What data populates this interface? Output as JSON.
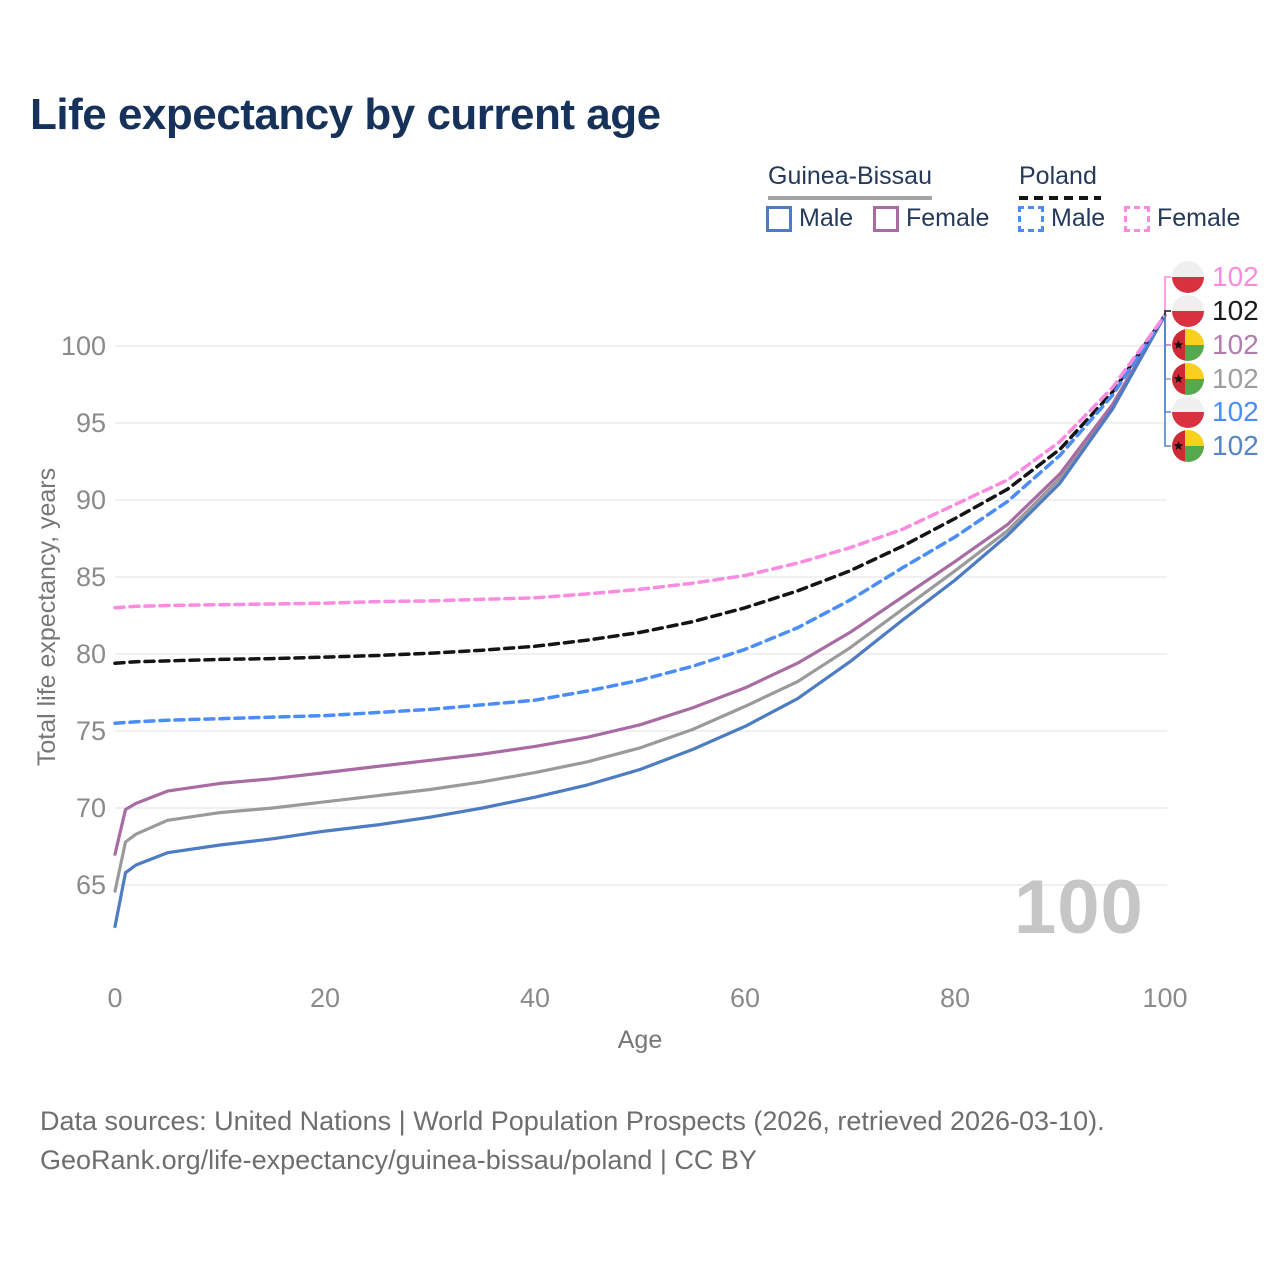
{
  "title": "Life expectancy by current age",
  "legend": {
    "groups": [
      {
        "label": "Guinea-Bissau",
        "line_style": "solid",
        "underline_color": "#a3a3a3",
        "items": [
          {
            "label": "Male",
            "color": "#4d7cc3"
          },
          {
            "label": "Female",
            "color": "#a86ba4"
          }
        ]
      },
      {
        "label": "Poland",
        "line_style": "dashed",
        "underline_color": "#141414",
        "items": [
          {
            "label": "Male",
            "color": "#4a8df8"
          },
          {
            "label": "Female",
            "color": "#fb8ae1"
          }
        ]
      }
    ]
  },
  "watermark": "100",
  "end_labels": [
    {
      "value": "102",
      "color": "#fb8ae1",
      "flag": "poland"
    },
    {
      "value": "102",
      "color": "#1a1a1a",
      "flag": "poland"
    },
    {
      "value": "102",
      "color": "#b27cb0",
      "flag": "guinea-bissau"
    },
    {
      "value": "102",
      "color": "#9e9e9e",
      "flag": "guinea-bissau"
    },
    {
      "value": "102",
      "color": "#4a8df8",
      "flag": "poland"
    },
    {
      "value": "102",
      "color": "#5585c2",
      "flag": "guinea-bissau"
    }
  ],
  "chart_data": {
    "type": "line",
    "title": "Life expectancy by current age",
    "xlabel": "Age",
    "ylabel": "Total life expectancy, years",
    "xlim": [
      0,
      100
    ],
    "ylim": [
      62,
      103
    ],
    "x_ticks": [
      0,
      20,
      40,
      60,
      80,
      100
    ],
    "y_ticks": [
      65,
      70,
      75,
      80,
      85,
      90,
      95,
      100
    ],
    "grid": "horizontal",
    "legend_position": "top-right",
    "x": [
      0,
      1,
      2,
      5,
      10,
      15,
      20,
      25,
      30,
      35,
      40,
      45,
      50,
      55,
      60,
      65,
      70,
      75,
      80,
      85,
      90,
      95,
      100
    ],
    "series": [
      {
        "id": "gb-all",
        "name": "Guinea-Bissau overall",
        "color": "#9a9a9a",
        "dash": false,
        "values": [
          64.6,
          67.8,
          68.3,
          69.2,
          69.7,
          70.0,
          70.4,
          70.8,
          71.2,
          71.7,
          72.3,
          73.0,
          73.9,
          75.1,
          76.6,
          78.2,
          80.4,
          82.9,
          85.4,
          88.0,
          91.4,
          96.0,
          102
        ]
      },
      {
        "id": "gb-female",
        "name": "Guinea-Bissau Female",
        "color": "#a86ba4",
        "dash": false,
        "values": [
          67.0,
          69.9,
          70.3,
          71.1,
          71.6,
          71.9,
          72.3,
          72.7,
          73.1,
          73.5,
          74.0,
          74.6,
          75.4,
          76.5,
          77.8,
          79.4,
          81.4,
          83.7,
          86.0,
          88.4,
          91.7,
          96.2,
          102
        ]
      },
      {
        "id": "gb-male",
        "name": "Guinea-Bissau Male",
        "color": "#4d7cc3",
        "dash": false,
        "values": [
          62.3,
          65.8,
          66.3,
          67.1,
          67.6,
          68.0,
          68.5,
          68.9,
          69.4,
          70.0,
          70.7,
          71.5,
          72.5,
          73.8,
          75.3,
          77.1,
          79.5,
          82.2,
          84.8,
          87.7,
          91.1,
          95.9,
          102
        ]
      },
      {
        "id": "pl-all",
        "name": "Poland overall",
        "color": "#141414",
        "dash": true,
        "values": [
          79.4,
          79.45,
          79.5,
          79.55,
          79.65,
          79.7,
          79.8,
          79.9,
          80.05,
          80.25,
          80.5,
          80.9,
          81.4,
          82.1,
          83.0,
          84.1,
          85.4,
          87.0,
          88.8,
          90.7,
          93.3,
          97.0,
          102
        ]
      },
      {
        "id": "pl-male",
        "name": "Poland Male",
        "color": "#4a8df8",
        "dash": true,
        "values": [
          75.5,
          75.55,
          75.6,
          75.7,
          75.8,
          75.9,
          76.0,
          76.2,
          76.4,
          76.7,
          77.0,
          77.6,
          78.3,
          79.2,
          80.3,
          81.7,
          83.5,
          85.6,
          87.6,
          89.9,
          92.9,
          96.8,
          102
        ]
      },
      {
        "id": "pl-female",
        "name": "Poland Female",
        "color": "#fb8ae1",
        "dash": true,
        "values": [
          83.0,
          83.05,
          83.1,
          83.15,
          83.2,
          83.25,
          83.3,
          83.4,
          83.45,
          83.55,
          83.65,
          83.9,
          84.2,
          84.6,
          85.1,
          85.9,
          86.9,
          88.1,
          89.7,
          91.3,
          93.8,
          97.3,
          102
        ]
      }
    ]
  },
  "footer": {
    "line1": "Data sources: United Nations | World Population Prospects (2026, retrieved 2026-03-10).",
    "line2": "GeoRank.org/life-expectancy/guinea-bissau/poland | CC BY"
  }
}
